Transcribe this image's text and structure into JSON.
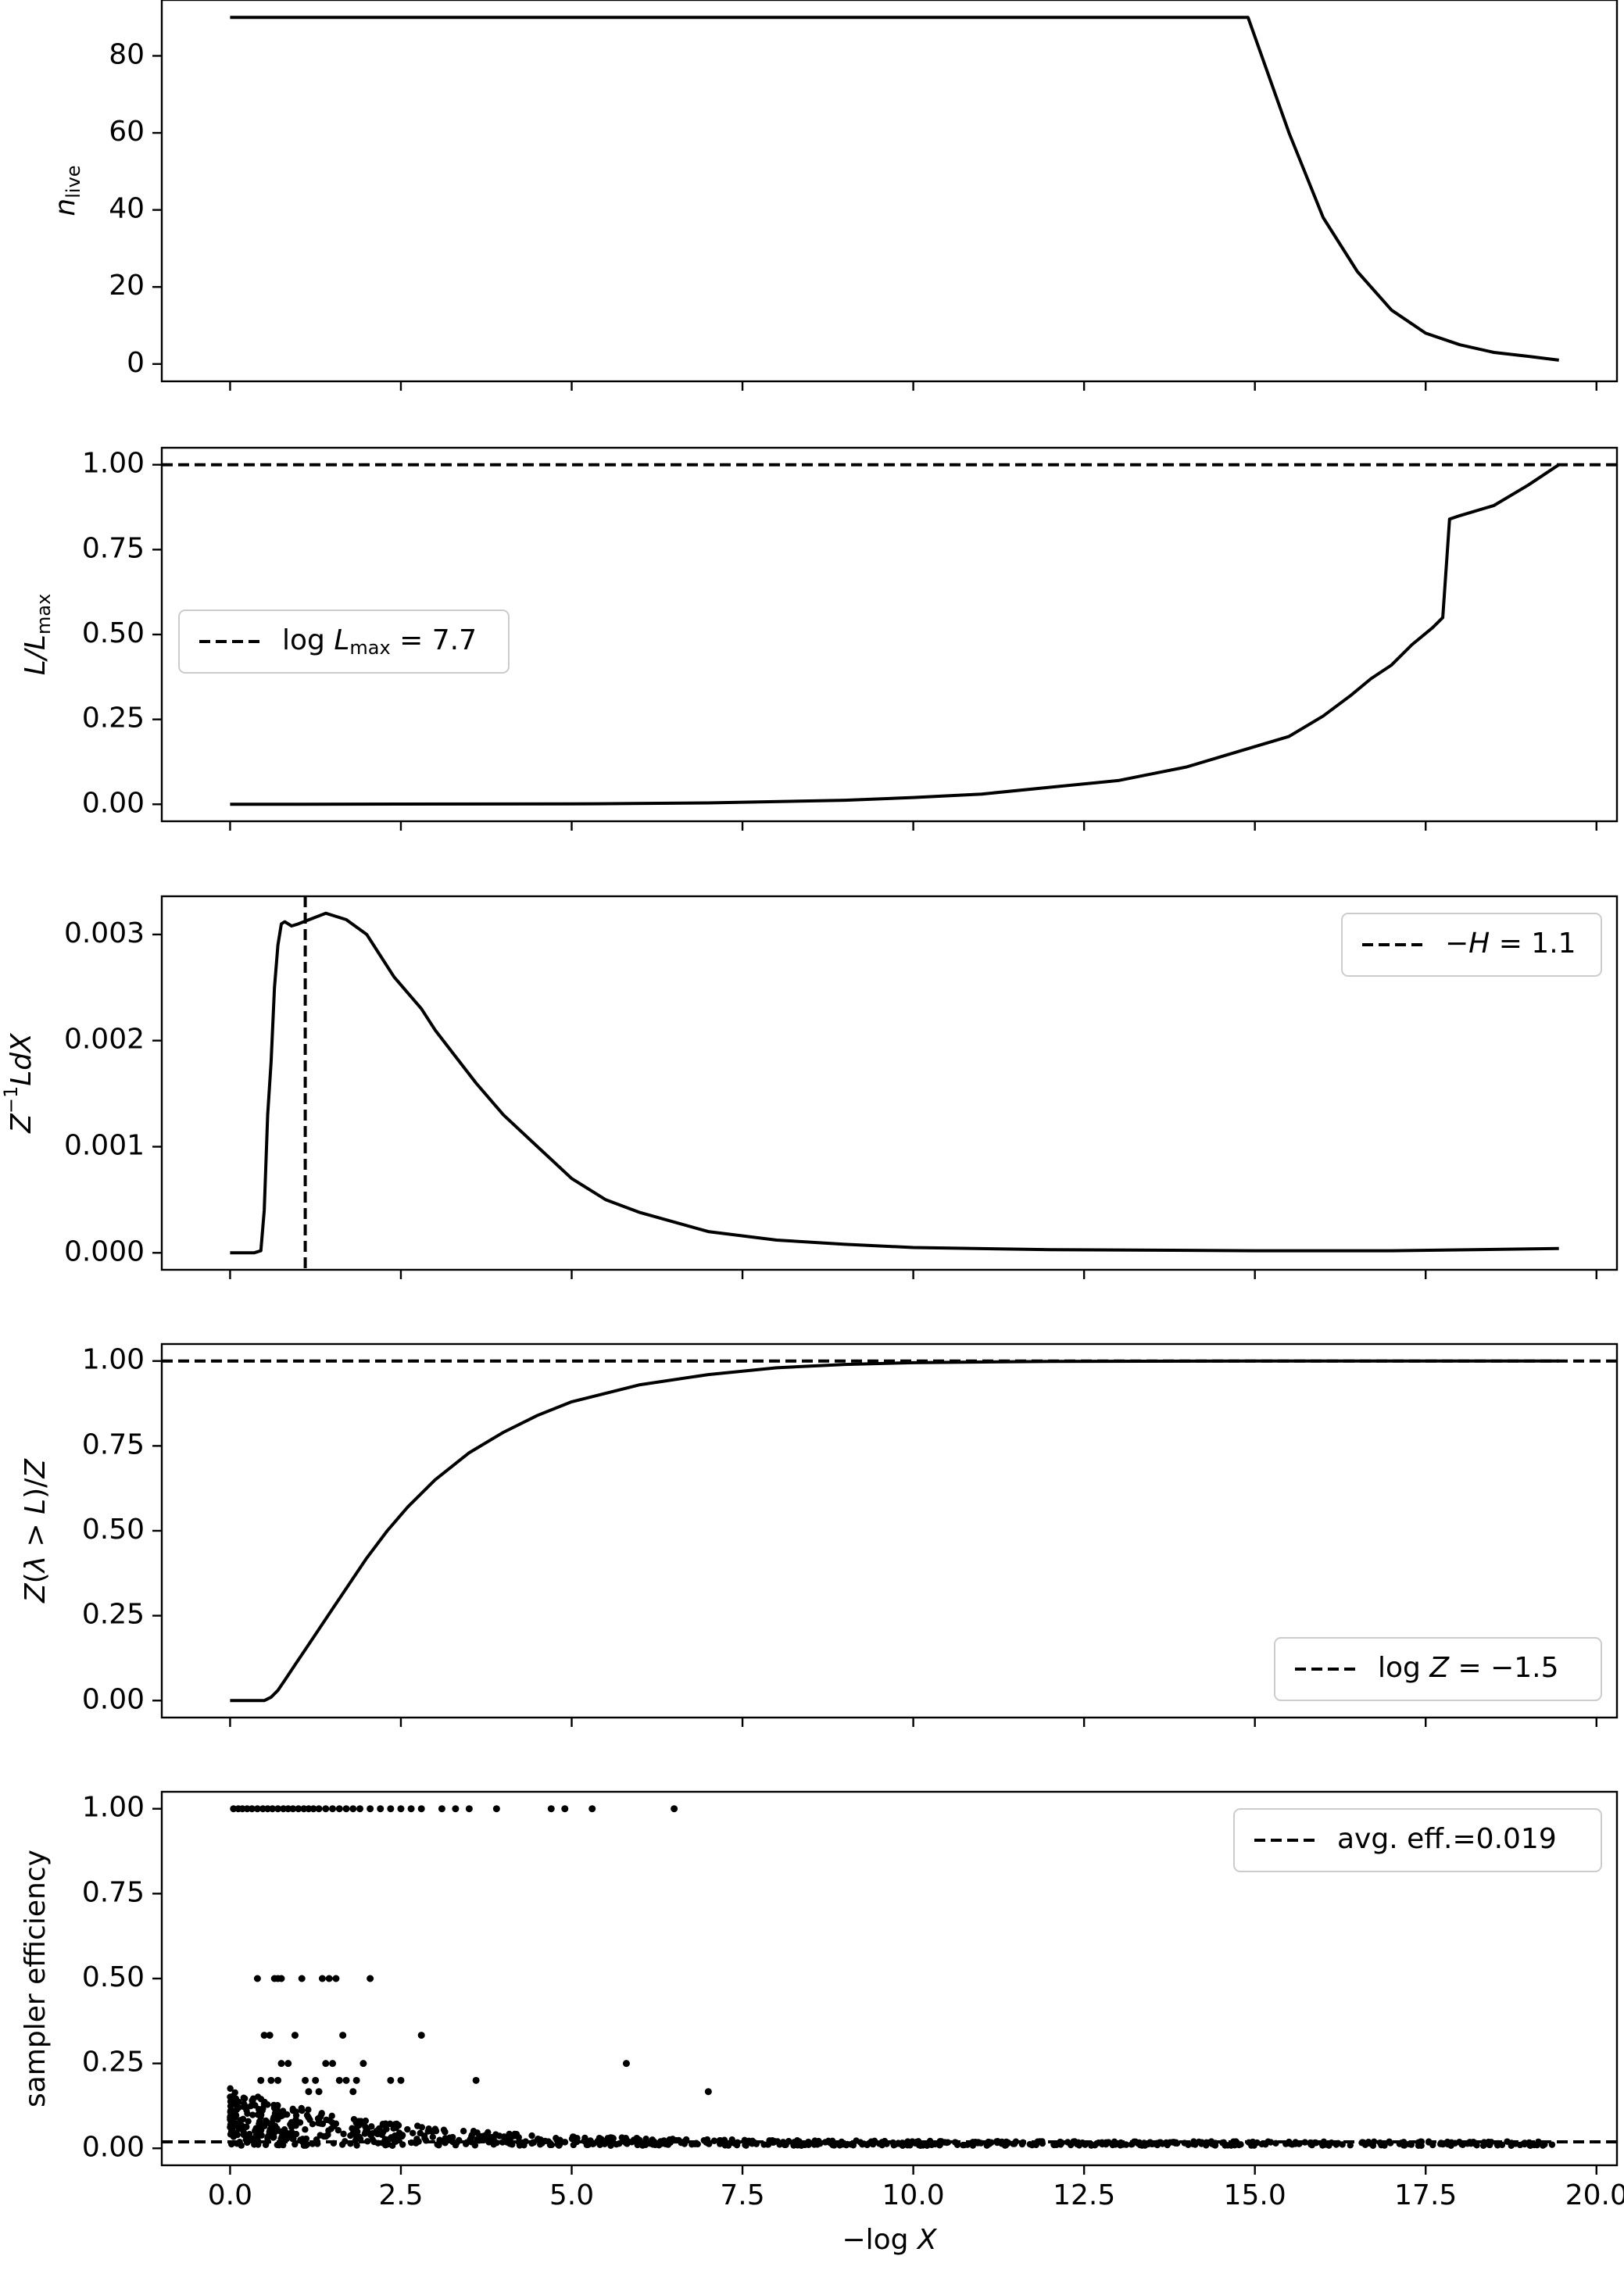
{
  "chart_data": [
    {
      "type": "line",
      "panel": "nlive",
      "ylabel_main": "n",
      "ylabel_sub": "live",
      "xlabel": "",
      "xlim": [
        -1.0,
        20.3
      ],
      "ylim": [
        -4.5,
        94.5
      ],
      "yticks": [
        0,
        20,
        40,
        60,
        80
      ],
      "ytick_labels": [
        "0",
        "20",
        "40",
        "60",
        "80"
      ],
      "series": [
        {
          "name": "n_live",
          "style": "solid",
          "x": [
            0.0,
            14.9,
            15.5,
            16.0,
            16.5,
            17.0,
            17.5,
            18.0,
            18.5,
            19.0,
            19.45
          ],
          "y": [
            90,
            90,
            60,
            38,
            24,
            14,
            8,
            5,
            3,
            2,
            1
          ]
        }
      ]
    },
    {
      "type": "line",
      "panel": "likelihood",
      "ylabel": "L/L_max",
      "ylabel_main": "L/L",
      "ylabel_sub": "max",
      "xlabel": "",
      "xlim": [
        -1.0,
        20.3
      ],
      "ylim": [
        -0.05,
        1.05
      ],
      "yticks": [
        0.0,
        0.25,
        0.5,
        0.75,
        1.0
      ],
      "ytick_labels": [
        "0.00",
        "0.25",
        "0.50",
        "0.75",
        "1.00"
      ],
      "hline": 1.0,
      "legend": {
        "position": "center-left",
        "label_pre": "log ",
        "label_var": "L",
        "label_sub": "max",
        "label_post": " = 7.7"
      },
      "series": [
        {
          "name": "L/Lmax",
          "style": "solid",
          "x": [
            0.0,
            5.0,
            7.0,
            9.0,
            10.0,
            11.0,
            12.0,
            13.0,
            13.5,
            14.0,
            14.5,
            15.0,
            15.5,
            16.0,
            16.4,
            16.7,
            17.0,
            17.3,
            17.6,
            17.75,
            17.85,
            18.0,
            18.5,
            19.0,
            19.45
          ],
          "y": [
            0.0,
            0.001,
            0.004,
            0.012,
            0.02,
            0.03,
            0.05,
            0.07,
            0.09,
            0.11,
            0.14,
            0.17,
            0.2,
            0.26,
            0.32,
            0.37,
            0.41,
            0.47,
            0.52,
            0.55,
            0.84,
            0.85,
            0.88,
            0.94,
            1.0
          ]
        }
      ]
    },
    {
      "type": "line",
      "panel": "posterior",
      "ylabel": "Z^-1 L dX",
      "xlabel": "",
      "xlim": [
        -1.0,
        20.3
      ],
      "ylim": [
        -0.00016,
        0.00336
      ],
      "yticks": [
        0.0,
        0.001,
        0.002,
        0.003
      ],
      "ytick_labels": [
        "0.000",
        "0.001",
        "0.002",
        "0.003"
      ],
      "vline": 1.1,
      "legend": {
        "position": "top-right",
        "label_pre": "−",
        "label_var": "H",
        "label_post": " = 1.1"
      },
      "series": [
        {
          "name": "posterior mass",
          "style": "solid",
          "x": [
            0.0,
            0.35,
            0.45,
            0.5,
            0.55,
            0.6,
            0.65,
            0.7,
            0.75,
            0.8,
            0.9,
            1.0,
            1.2,
            1.4,
            1.5,
            1.7,
            2.0,
            2.2,
            2.4,
            2.6,
            2.8,
            3.0,
            3.3,
            3.6,
            4.0,
            4.5,
            5.0,
            5.5,
            6.0,
            7.0,
            8.0,
            9.0,
            10.0,
            12.0,
            15.0,
            17.0,
            19.45
          ],
          "y": [
            0.0,
            0.0,
            2e-05,
            0.0004,
            0.0013,
            0.0018,
            0.0025,
            0.0029,
            0.0031,
            0.00312,
            0.00308,
            0.0031,
            0.00315,
            0.0032,
            0.00318,
            0.00314,
            0.003,
            0.0028,
            0.0026,
            0.00245,
            0.0023,
            0.0021,
            0.00185,
            0.0016,
            0.0013,
            0.001,
            0.0007,
            0.0005,
            0.00038,
            0.0002,
            0.00012,
            8e-05,
            5e-05,
            3e-05,
            2e-05,
            2e-05,
            4e-05
          ]
        }
      ]
    },
    {
      "type": "line",
      "panel": "evidence",
      "ylabel": "Z(λ > L)/Z",
      "xlabel": "",
      "xlim": [
        -1.0,
        20.3
      ],
      "ylim": [
        -0.05,
        1.05
      ],
      "yticks": [
        0.0,
        0.25,
        0.5,
        0.75,
        1.0
      ],
      "ytick_labels": [
        "0.00",
        "0.25",
        "0.50",
        "0.75",
        "1.00"
      ],
      "hline": 1.0,
      "legend": {
        "position": "bottom-right",
        "label_pre": "log ",
        "label_var": "Z",
        "label_post": " = −1.5"
      },
      "series": [
        {
          "name": "cumulative evidence",
          "style": "solid",
          "x": [
            0.0,
            0.5,
            0.6,
            0.7,
            0.8,
            1.0,
            1.2,
            1.5,
            1.8,
            2.0,
            2.3,
            2.6,
            3.0,
            3.5,
            4.0,
            4.5,
            5.0,
            6.0,
            7.0,
            8.0,
            9.0,
            10.0,
            12.0,
            15.0,
            19.45
          ],
          "y": [
            0.0,
            0.0,
            0.01,
            0.03,
            0.06,
            0.12,
            0.18,
            0.27,
            0.36,
            0.42,
            0.5,
            0.57,
            0.65,
            0.73,
            0.79,
            0.84,
            0.88,
            0.93,
            0.96,
            0.98,
            0.99,
            0.995,
            0.999,
            1.0,
            1.0
          ]
        }
      ]
    },
    {
      "type": "scatter",
      "panel": "efficiency",
      "ylabel": "sampler efficiency",
      "xlabel": "−log X",
      "xlabel_pre": "−log ",
      "xlabel_var": "X",
      "xlim": [
        -1.0,
        20.3
      ],
      "ylim": [
        -0.05,
        1.05
      ],
      "yticks": [
        0.0,
        0.25,
        0.5,
        0.75,
        1.0
      ],
      "ytick_labels": [
        "0.00",
        "0.25",
        "0.50",
        "0.75",
        "1.00"
      ],
      "xticks": [
        0.0,
        2.5,
        5.0,
        7.5,
        10.0,
        12.5,
        15.0,
        17.5,
        20.0
      ],
      "xtick_labels": [
        "0.0",
        "2.5",
        "5.0",
        "7.5",
        "10.0",
        "12.5",
        "15.0",
        "17.5",
        "20.0"
      ],
      "hline": 0.019,
      "legend": {
        "position": "top-right",
        "label": "avg. eff.=0.019"
      },
      "series": [
        {
          "name": "efficiency = 1.0",
          "y": 1.0,
          "x": [
            0.05,
            0.12,
            0.18,
            0.25,
            0.32,
            0.4,
            0.48,
            0.55,
            0.62,
            0.7,
            0.78,
            0.85,
            0.92,
            1.0,
            1.08,
            1.15,
            1.22,
            1.3,
            1.4,
            1.5,
            1.6,
            1.7,
            1.8,
            1.9,
            2.05,
            2.2,
            2.35,
            2.5,
            2.65,
            2.8,
            3.1,
            3.3,
            3.5,
            3.9,
            4.7,
            4.9,
            5.3,
            6.5
          ]
        },
        {
          "name": "efficiency = 0.5",
          "y": 0.5,
          "x": [
            0.4,
            0.65,
            0.7,
            0.75,
            1.05,
            1.35,
            1.45,
            1.55,
            2.05
          ]
        },
        {
          "name": "efficiency = 0.333",
          "y": 0.333,
          "x": [
            0.5,
            0.58,
            0.95,
            1.65,
            2.8
          ]
        },
        {
          "name": "efficiency = 0.25",
          "y": 0.25,
          "x": [
            0.75,
            0.85,
            1.4,
            1.5,
            1.95,
            5.8
          ]
        },
        {
          "name": "efficiency = 0.2",
          "y": 0.2,
          "x": [
            0.45,
            0.6,
            0.7,
            1.1,
            1.25,
            1.6,
            1.7,
            1.85,
            2.35,
            2.5,
            3.6
          ]
        },
        {
          "name": "efficiency = 0.167",
          "y": 0.167,
          "x": [
            1.15,
            1.3,
            1.8,
            7.0
          ]
        }
      ]
    }
  ]
}
